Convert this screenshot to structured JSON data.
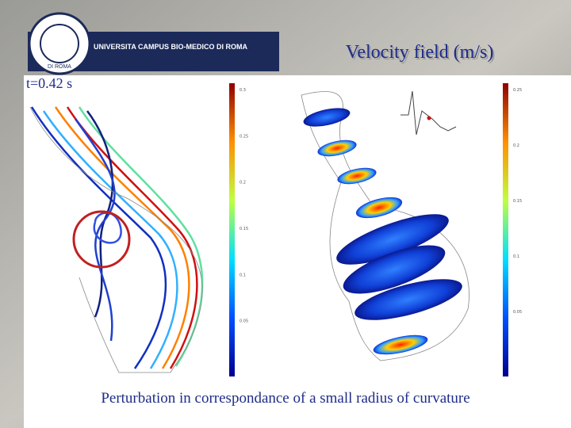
{
  "header": {
    "logo_text": "UNIVERSITA CAMPUS BIO-MEDICO DI ROMA",
    "logo_sub": "DI ROMA",
    "title": "Velocity field (m/s)"
  },
  "time_label": "t=0.42 s",
  "left_colorbar": {
    "ticks": [
      "0.3",
      "0.25",
      "0.2",
      "0.15",
      "0.1",
      "0.05"
    ]
  },
  "right_colorbar": {
    "ticks": [
      "0.25",
      "0.2",
      "0.15",
      "0.1",
      "0.05"
    ]
  },
  "caption": "Perturbation in correspondance of a small radius of curvature"
}
